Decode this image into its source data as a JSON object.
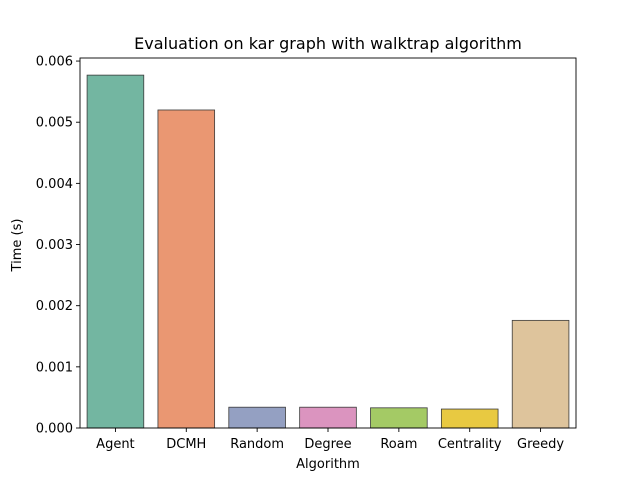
{
  "chart_data": {
    "type": "bar",
    "title": "Evaluation on kar graph with walktrap algorithm",
    "xlabel": "Algorithm",
    "ylabel": "Time (s)",
    "categories": [
      "Agent",
      "DCMH",
      "Random",
      "Degree",
      "Roam",
      "Centrality",
      "Greedy"
    ],
    "values": [
      0.00577,
      0.0052,
      0.00034,
      0.00034,
      0.00033,
      0.00031,
      0.00176
    ],
    "colors": [
      "#73b6a1",
      "#ea9772",
      "#94a0c2",
      "#db94bf",
      "#a4ca65",
      "#e8c941",
      "#dec49c"
    ],
    "ylim": [
      0,
      0.00605
    ],
    "yticks": [
      "0.000",
      "0.001",
      "0.002",
      "0.003",
      "0.004",
      "0.005",
      "0.006"
    ],
    "ytick_values": [
      0,
      0.001,
      0.002,
      0.003,
      0.004,
      0.005,
      0.006
    ],
    "grid": false,
    "legend": "none"
  }
}
